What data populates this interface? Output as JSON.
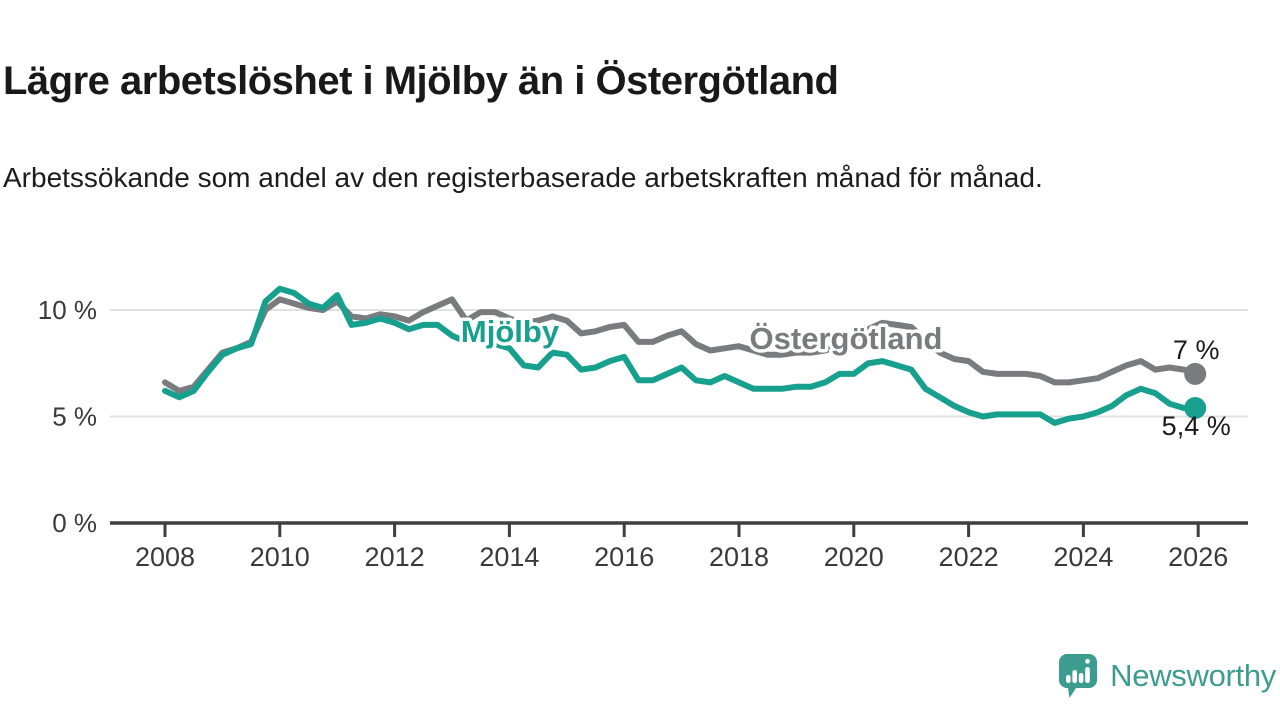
{
  "header": {
    "title": "Lägre arbetslöshet i Mjölby än i Östergötland",
    "subtitle": "Arbetssökande som andel av den registerbaserade arbetskraften månad för månad."
  },
  "footer": {
    "brand": "Newsworthy",
    "logo_icon": "speech-bubble-bar-chart-icon"
  },
  "colors": {
    "mjolby_teal": "#18a08e",
    "ostergotland_gray": "#7a7b7f",
    "axis": "#3f3f42",
    "tick_text": "#3a3a3e",
    "grid": "#e1e1e1",
    "value_text": "#1a1a1a",
    "brand_teal": "#3d9c90",
    "background": "#ffffff"
  },
  "chart_data": {
    "type": "line",
    "title": "Lägre arbetslöshet i Mjölby än i Östergötland",
    "xlabel": "",
    "ylabel": "Arbetssökande som andel av den registerbaserade arbetskraften (%)",
    "grid": "horizontal",
    "legend_position": "inline-labels",
    "xlim": [
      2007.9,
      2026.1
    ],
    "ylim": [
      0,
      11.5
    ],
    "x_ticks": [
      2008,
      2010,
      2012,
      2014,
      2016,
      2018,
      2020,
      2022,
      2024,
      2026
    ],
    "y_ticks": [
      {
        "value": 0,
        "label": "0 %"
      },
      {
        "value": 5,
        "label": "5 %"
      },
      {
        "value": 10,
        "label": "10 %"
      }
    ],
    "x": [
      2008.0,
      2008.25,
      2008.5,
      2008.75,
      2009.0,
      2009.25,
      2009.5,
      2009.75,
      2010.0,
      2010.25,
      2010.5,
      2010.75,
      2011.0,
      2011.25,
      2011.5,
      2011.75,
      2012.0,
      2012.25,
      2012.5,
      2012.75,
      2013.0,
      2013.25,
      2013.5,
      2013.75,
      2014.0,
      2014.25,
      2014.5,
      2014.75,
      2015.0,
      2015.25,
      2015.5,
      2015.75,
      2016.0,
      2016.25,
      2016.5,
      2016.75,
      2017.0,
      2017.25,
      2017.5,
      2017.75,
      2018.0,
      2018.25,
      2018.5,
      2018.75,
      2019.0,
      2019.25,
      2019.5,
      2019.75,
      2020.0,
      2020.25,
      2020.5,
      2020.75,
      2021.0,
      2021.25,
      2021.5,
      2021.75,
      2022.0,
      2022.25,
      2022.5,
      2022.75,
      2023.0,
      2023.25,
      2023.5,
      2023.75,
      2024.0,
      2024.25,
      2024.5,
      2024.75,
      2025.0,
      2025.25,
      2025.5,
      2025.75,
      2026.0
    ],
    "series": [
      {
        "name": "Mjölby",
        "color": "#18a08e",
        "end_label": "5,4 %",
        "last_value": 5.4,
        "values": [
          6.2,
          5.9,
          6.2,
          7.1,
          7.9,
          8.2,
          8.4,
          10.4,
          11.0,
          10.8,
          10.3,
          10.1,
          10.7,
          9.3,
          9.4,
          9.6,
          9.4,
          9.1,
          9.3,
          9.3,
          8.8,
          8.5,
          8.6,
          8.4,
          8.2,
          7.4,
          7.3,
          8.0,
          7.9,
          7.2,
          7.3,
          7.6,
          7.8,
          6.7,
          6.7,
          7.0,
          7.3,
          6.7,
          6.6,
          6.9,
          6.6,
          6.3,
          6.3,
          6.3,
          6.4,
          6.4,
          6.6,
          7.0,
          7.0,
          7.5,
          7.6,
          7.4,
          7.2,
          6.3,
          5.9,
          5.5,
          5.2,
          5.0,
          5.1,
          5.1,
          5.1,
          5.1,
          4.7,
          4.9,
          5.0,
          5.2,
          5.5,
          6.0,
          6.3,
          6.1,
          5.6,
          5.4,
          5.4
        ]
      },
      {
        "name": "Östergötland",
        "color": "#7a7b7f",
        "end_label": "7 %",
        "last_value": 7.0,
        "values": [
          6.6,
          6.2,
          6.4,
          7.2,
          8.0,
          8.2,
          8.5,
          10.0,
          10.5,
          10.3,
          10.1,
          10.0,
          10.4,
          9.7,
          9.6,
          9.8,
          9.7,
          9.5,
          9.9,
          10.2,
          10.5,
          9.5,
          9.9,
          9.9,
          9.6,
          9.4,
          9.5,
          9.7,
          9.5,
          8.9,
          9.0,
          9.2,
          9.3,
          8.5,
          8.5,
          8.8,
          9.0,
          8.4,
          8.1,
          8.2,
          8.3,
          8.1,
          7.9,
          7.9,
          8.0,
          8.0,
          8.1,
          8.3,
          8.5,
          9.1,
          9.4,
          9.3,
          9.2,
          8.6,
          8.0,
          7.7,
          7.6,
          7.1,
          7.0,
          7.0,
          7.0,
          6.9,
          6.6,
          6.6,
          6.7,
          6.8,
          7.1,
          7.4,
          7.6,
          7.2,
          7.3,
          7.2,
          7.0
        ]
      }
    ]
  }
}
